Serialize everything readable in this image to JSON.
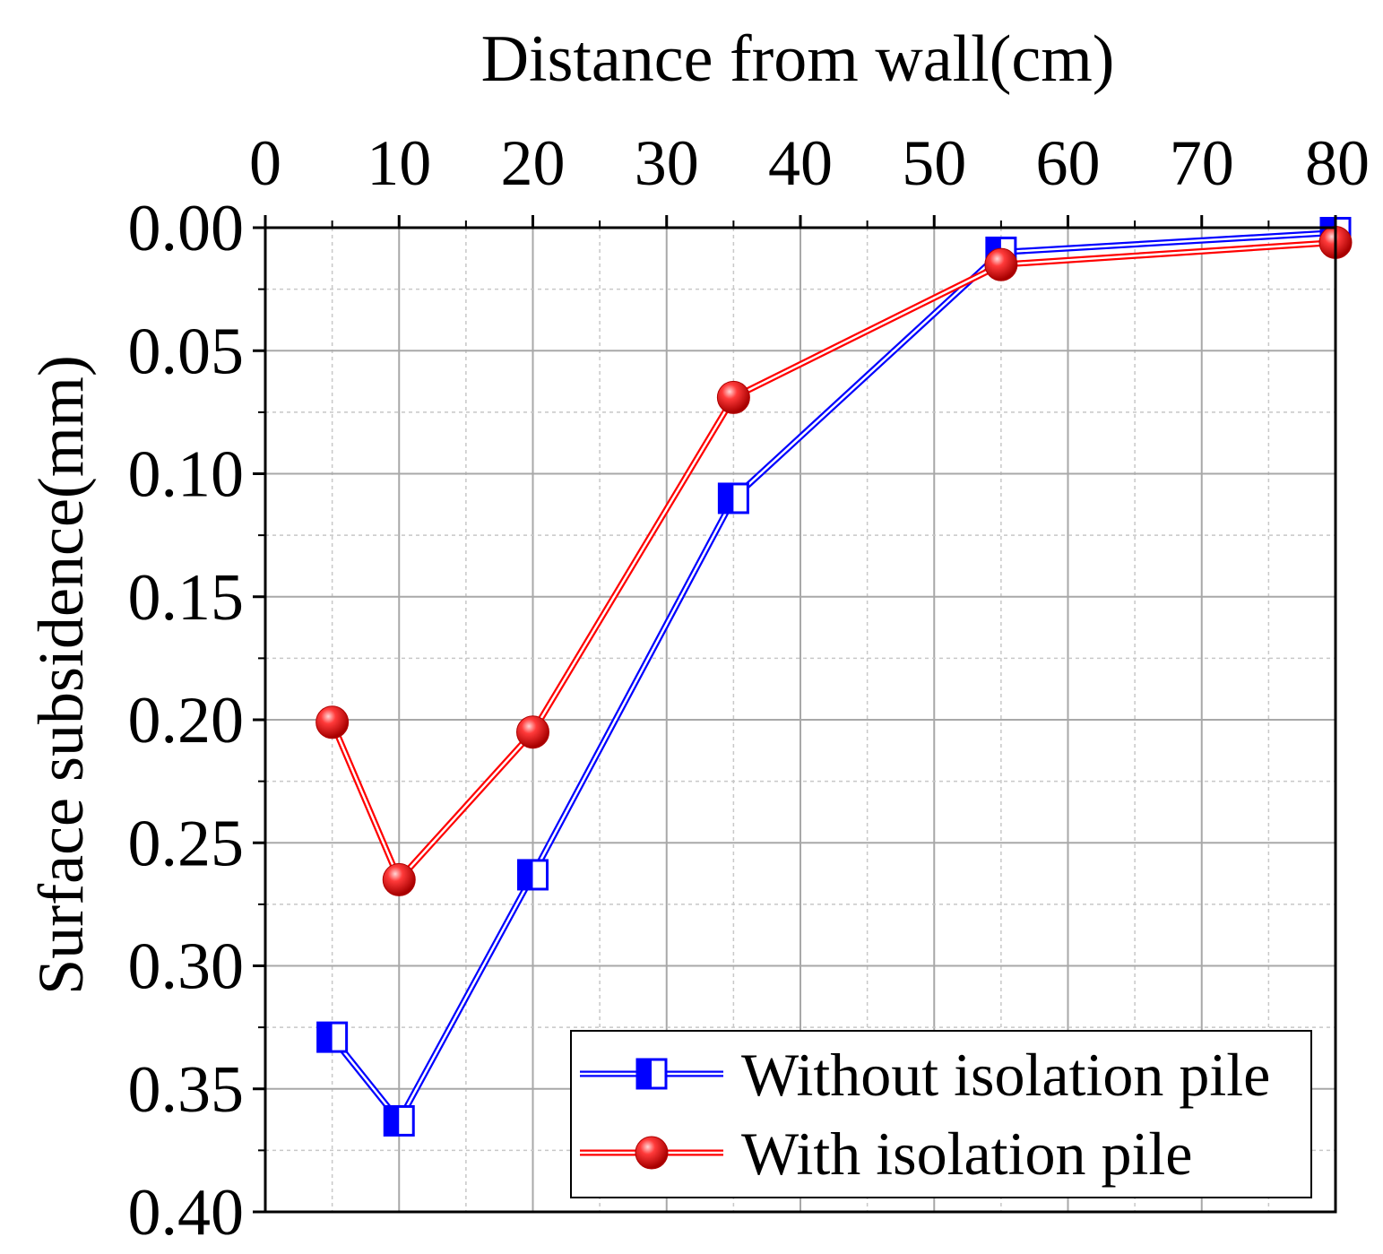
{
  "chart_data": {
    "type": "line",
    "title": "",
    "xlabel": "Distance from wall(cm)",
    "ylabel": "Surface subsidence(mm)",
    "x_axis_position": "top",
    "y_axis_inverted": true,
    "xlim": [
      0,
      80
    ],
    "ylim": [
      0.0,
      0.4
    ],
    "x_ticks": [
      0,
      10,
      20,
      30,
      40,
      50,
      60,
      70,
      80
    ],
    "x_tick_labels": [
      "0",
      "10",
      "20",
      "30",
      "40",
      "50",
      "60",
      "70",
      "80"
    ],
    "y_ticks": [
      0.0,
      0.05,
      0.1,
      0.15,
      0.2,
      0.25,
      0.3,
      0.35,
      0.4
    ],
    "y_tick_labels": [
      "0.00",
      "0.05",
      "0.10",
      "0.15",
      "0.20",
      "0.25",
      "0.30",
      "0.35",
      "0.40"
    ],
    "grid": true,
    "legend_position": "bottom-right",
    "series": [
      {
        "name": "Without isolation pile",
        "color": "#0000ff",
        "marker": "half-filled-square",
        "x": [
          5,
          10,
          20,
          35,
          55,
          80
        ],
        "values": [
          0.329,
          0.363,
          0.263,
          0.11,
          0.01,
          0.002
        ]
      },
      {
        "name": "With isolation pile",
        "color": "#ff0000",
        "marker": "sphere",
        "x": [
          5,
          10,
          20,
          35,
          55,
          80
        ],
        "values": [
          0.201,
          0.265,
          0.205,
          0.069,
          0.015,
          0.006
        ]
      }
    ]
  }
}
